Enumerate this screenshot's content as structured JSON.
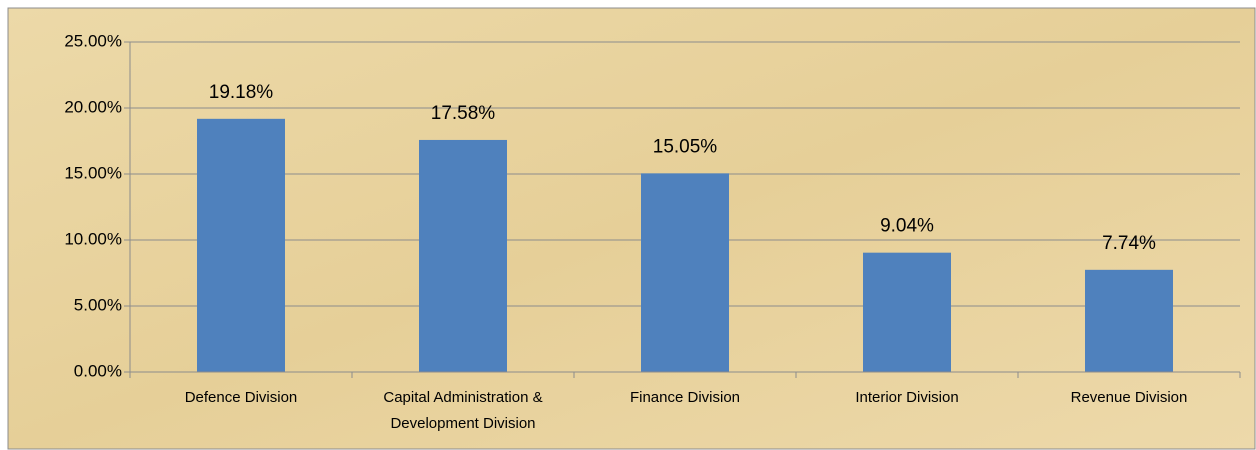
{
  "chart_data": {
    "type": "bar",
    "categories": [
      "Defence Division",
      "Capital Administration & Development Division",
      "Finance Division",
      "Interior Division",
      "Revenue Division"
    ],
    "values": [
      19.18,
      17.58,
      15.05,
      9.04,
      7.74
    ],
    "value_labels": [
      "19.18%",
      "17.58%",
      "15.05%",
      "9.04%",
      "7.74%"
    ],
    "color": "#4f81bd",
    "ylim": [
      0,
      25
    ],
    "yticks": [
      {
        "value": 0,
        "label": "0.00%"
      },
      {
        "value": 5,
        "label": "5.00%"
      },
      {
        "value": 10,
        "label": "10.00%"
      },
      {
        "value": 15,
        "label": "15.00%"
      },
      {
        "value": 20,
        "label": "20.00%"
      },
      {
        "value": 25,
        "label": "25.00%"
      }
    ],
    "grid": true
  }
}
